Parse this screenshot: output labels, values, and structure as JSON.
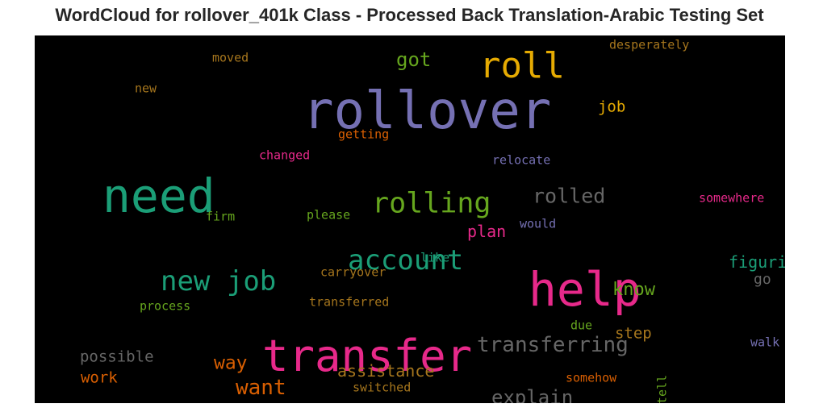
{
  "title": "WordCloud for rollover_401k Class - Processed Back Translation-Arabic Testing Set",
  "colors": {
    "purple": "#7570b3",
    "orange": "#e6ab02",
    "green": "#1b9e77",
    "pink": "#e7298a",
    "lime": "#66a61e",
    "gray": "#666666",
    "brown": "#a6761d",
    "rust": "#d95f02"
  },
  "words": [
    {
      "text": "rollover",
      "color": "purple",
      "weight": 64
    },
    {
      "text": "roll",
      "color": "orange",
      "weight": 44
    },
    {
      "text": "got",
      "color": "lime",
      "weight": 24
    },
    {
      "text": "desperately",
      "color": "brown",
      "weight": 15
    },
    {
      "text": "moved",
      "color": "brown",
      "weight": 15
    },
    {
      "text": "new",
      "color": "brown",
      "weight": 15
    },
    {
      "text": "job",
      "color": "orange",
      "weight": 19
    },
    {
      "text": "getting",
      "color": "rust",
      "weight": 15
    },
    {
      "text": "changed",
      "color": "pink",
      "weight": 15
    },
    {
      "text": "relocate",
      "color": "purple",
      "weight": 15
    },
    {
      "text": "need",
      "color": "green",
      "weight": 58
    },
    {
      "text": "rolling",
      "color": "lime",
      "weight": 35
    },
    {
      "text": "rolled",
      "color": "gray",
      "weight": 25
    },
    {
      "text": "somewhere",
      "color": "pink",
      "weight": 15
    },
    {
      "text": "firm",
      "color": "lime",
      "weight": 15
    },
    {
      "text": "please",
      "color": "lime",
      "weight": 15
    },
    {
      "text": "plan",
      "color": "pink",
      "weight": 20
    },
    {
      "text": "would",
      "color": "purple",
      "weight": 15
    },
    {
      "text": "account",
      "color": "green",
      "weight": 34
    },
    {
      "text": "help",
      "color": "pink",
      "weight": 58
    },
    {
      "text": "new job",
      "color": "green",
      "weight": 34
    },
    {
      "text": "like",
      "color": "green",
      "weight": 15
    },
    {
      "text": "figuring",
      "color": "green",
      "weight": 20
    },
    {
      "text": "carryover",
      "color": "brown",
      "weight": 15
    },
    {
      "text": "know",
      "color": "lime",
      "weight": 22
    },
    {
      "text": "go",
      "color": "gray",
      "weight": 18
    },
    {
      "text": "process",
      "color": "lime",
      "weight": 15
    },
    {
      "text": "transferred",
      "color": "brown",
      "weight": 15
    },
    {
      "text": "transfer",
      "color": "pink",
      "weight": 54
    },
    {
      "text": "transferring",
      "color": "gray",
      "weight": 26
    },
    {
      "text": "due",
      "color": "lime",
      "weight": 15
    },
    {
      "text": "step",
      "color": "brown",
      "weight": 19
    },
    {
      "text": "walk",
      "color": "purple",
      "weight": 15
    },
    {
      "text": "possible",
      "color": "gray",
      "weight": 19
    },
    {
      "text": "way",
      "color": "rust",
      "weight": 23
    },
    {
      "text": "assistance",
      "color": "brown",
      "weight": 20
    },
    {
      "text": "work",
      "color": "rust",
      "weight": 19
    },
    {
      "text": "want",
      "color": "rust",
      "weight": 26
    },
    {
      "text": "tell",
      "color": "lime",
      "weight": 15
    },
    {
      "text": "somehow",
      "color": "rust",
      "weight": 15
    },
    {
      "text": "switched",
      "color": "brown",
      "weight": 15
    },
    {
      "text": "explain",
      "color": "gray",
      "weight": 24
    }
  ]
}
